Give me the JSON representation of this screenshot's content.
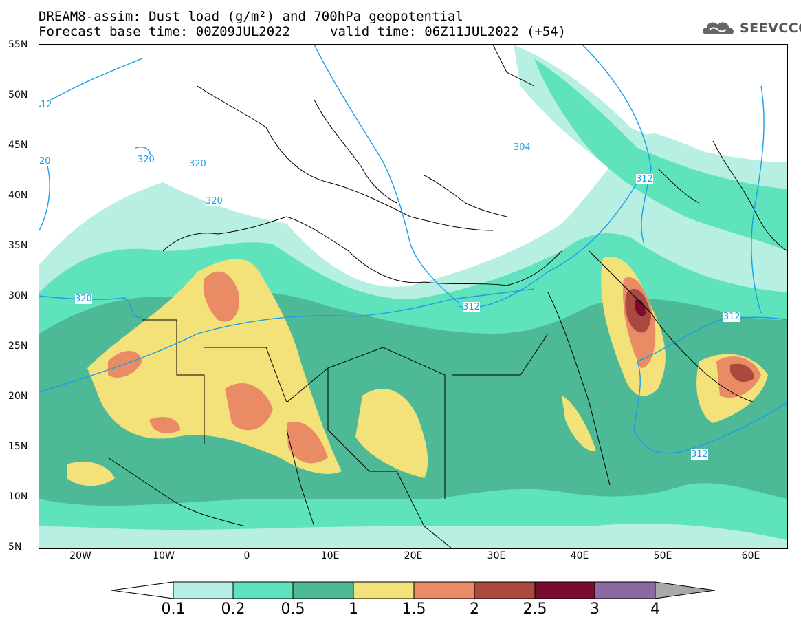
{
  "title": {
    "line1": "DREAM8-assim: Dust load (g/m²) and 700hPa geopotential",
    "line2a": "Forecast base time: 00Z09JUL2022",
    "line2b": "valid time: 06Z11JUL2022 (+54)"
  },
  "logo": {
    "icon": "cloud-icon",
    "text": "SEEVCCC"
  },
  "lat_labels": [
    "55N",
    "50N",
    "45N",
    "40N",
    "35N",
    "30N",
    "25N",
    "20N",
    "15N",
    "10N",
    "5N"
  ],
  "lon_labels": [
    "20W",
    "10W",
    "0",
    "10E",
    "20E",
    "30E",
    "40E",
    "50E",
    "60E"
  ],
  "contour_labels": [
    "12",
    "20",
    "320",
    "320",
    "320",
    "320",
    "304",
    "312",
    "312",
    "312",
    "312"
  ],
  "colorbar": {
    "labels": [
      "0.1",
      "0.2",
      "0.5",
      "1",
      "1.5",
      "2",
      "2.5",
      "3",
      "4"
    ],
    "colors": [
      "#b7efe3",
      "#5fe3bd",
      "#4db996",
      "#f3e27a",
      "#e98c66",
      "#aa4a3e",
      "#7a0a2e",
      "#8a6aa0",
      "#a8a8a8"
    ]
  },
  "colors": {
    "dust_0_1": "#b7efe3",
    "dust_0_2": "#5fe3bd",
    "dust_0_5": "#4db996",
    "dust_1": "#f3e27a",
    "dust_1_5": "#e98c66",
    "dust_2": "#aa4a3e",
    "dust_2_5": "#7a0a2e",
    "contour": "#1a9ee8"
  }
}
